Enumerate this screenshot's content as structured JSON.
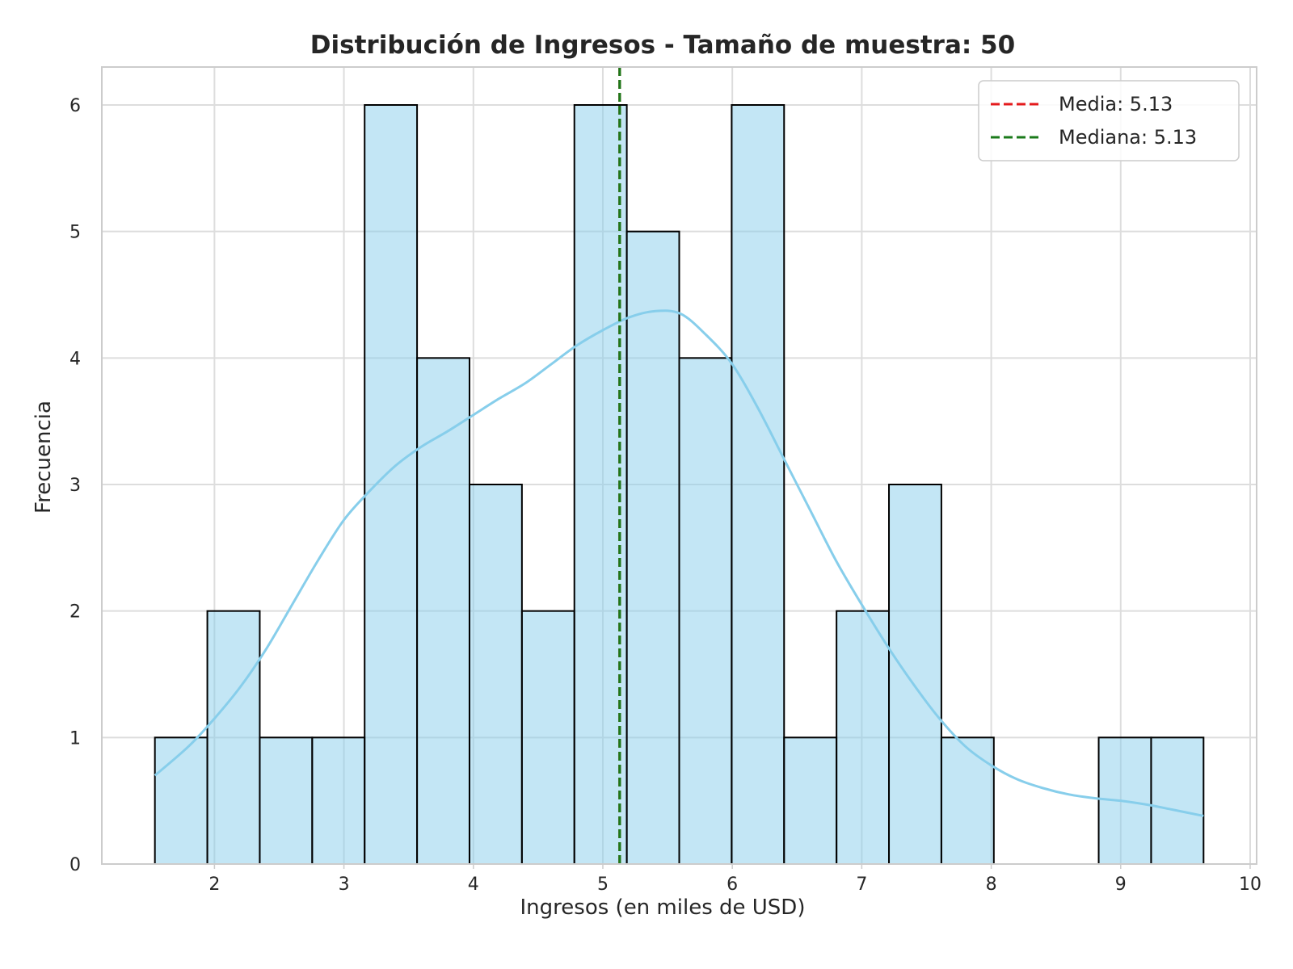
{
  "chart_data": {
    "type": "bar",
    "title": "Distribución de Ingresos - Tamaño de muestra: 50",
    "xlabel": "Ingresos (en miles de USD)",
    "ylabel": "Frecuencia",
    "xlim": [
      1.13,
      10.05
    ],
    "ylim": [
      0,
      6.3
    ],
    "xticks": [
      2,
      3,
      4,
      5,
      6,
      7,
      8,
      9,
      10
    ],
    "yticks": [
      0,
      1,
      2,
      3,
      4,
      5,
      6
    ],
    "grid": true,
    "legend_position": "top-right",
    "bins": [
      {
        "x0": 1.54,
        "x1": 1.945,
        "count": 1
      },
      {
        "x0": 1.945,
        "x1": 2.35,
        "count": 2
      },
      {
        "x0": 2.35,
        "x1": 2.755,
        "count": 1
      },
      {
        "x0": 2.755,
        "x1": 3.16,
        "count": 1
      },
      {
        "x0": 3.16,
        "x1": 3.565,
        "count": 6
      },
      {
        "x0": 3.565,
        "x1": 3.97,
        "count": 4
      },
      {
        "x0": 3.97,
        "x1": 4.375,
        "count": 3
      },
      {
        "x0": 4.375,
        "x1": 4.78,
        "count": 2
      },
      {
        "x0": 4.78,
        "x1": 5.185,
        "count": 6
      },
      {
        "x0": 5.185,
        "x1": 5.59,
        "count": 5
      },
      {
        "x0": 5.59,
        "x1": 5.995,
        "count": 4
      },
      {
        "x0": 5.995,
        "x1": 6.4,
        "count": 6
      },
      {
        "x0": 6.4,
        "x1": 6.805,
        "count": 1
      },
      {
        "x0": 6.805,
        "x1": 7.21,
        "count": 2
      },
      {
        "x0": 7.21,
        "x1": 7.615,
        "count": 3
      },
      {
        "x0": 7.615,
        "x1": 8.02,
        "count": 1
      },
      {
        "x0": 8.02,
        "x1": 8.425,
        "count": 0
      },
      {
        "x0": 8.425,
        "x1": 8.83,
        "count": 0
      },
      {
        "x0": 8.83,
        "x1": 9.235,
        "count": 1
      },
      {
        "x0": 9.235,
        "x1": 9.64,
        "count": 1
      }
    ],
    "kde": {
      "x": [
        1.54,
        1.8,
        2.0,
        2.2,
        2.4,
        2.6,
        2.8,
        3.0,
        3.2,
        3.4,
        3.6,
        3.8,
        4.0,
        4.2,
        4.4,
        4.6,
        4.8,
        5.0,
        5.2,
        5.4,
        5.6,
        5.8,
        6.0,
        6.2,
        6.4,
        6.6,
        6.8,
        7.0,
        7.2,
        7.4,
        7.6,
        7.8,
        8.0,
        8.2,
        8.4,
        8.6,
        8.8,
        9.0,
        9.2,
        9.4,
        9.64
      ],
      "y": [
        0.7,
        0.93,
        1.15,
        1.4,
        1.7,
        2.05,
        2.4,
        2.72,
        2.95,
        3.15,
        3.3,
        3.42,
        3.55,
        3.68,
        3.8,
        3.95,
        4.1,
        4.22,
        4.32,
        4.37,
        4.35,
        4.18,
        3.95,
        3.6,
        3.2,
        2.8,
        2.4,
        2.05,
        1.72,
        1.42,
        1.15,
        0.93,
        0.78,
        0.67,
        0.6,
        0.55,
        0.52,
        0.5,
        0.47,
        0.43,
        0.38
      ]
    },
    "lines": [
      {
        "name": "Media: 5.13",
        "x": 5.13,
        "color": "#e41a1c",
        "style": "dashed"
      },
      {
        "name": "Mediana: 5.13",
        "x": 5.13,
        "color": "#1a7a1a",
        "style": "dashed"
      }
    ],
    "colors": {
      "bar_fill": "#87ceeb",
      "bar_edge": "#000000",
      "kde": "#87ceeb",
      "grid": "#dddddd",
      "axis_spine": "#cccccc"
    }
  }
}
